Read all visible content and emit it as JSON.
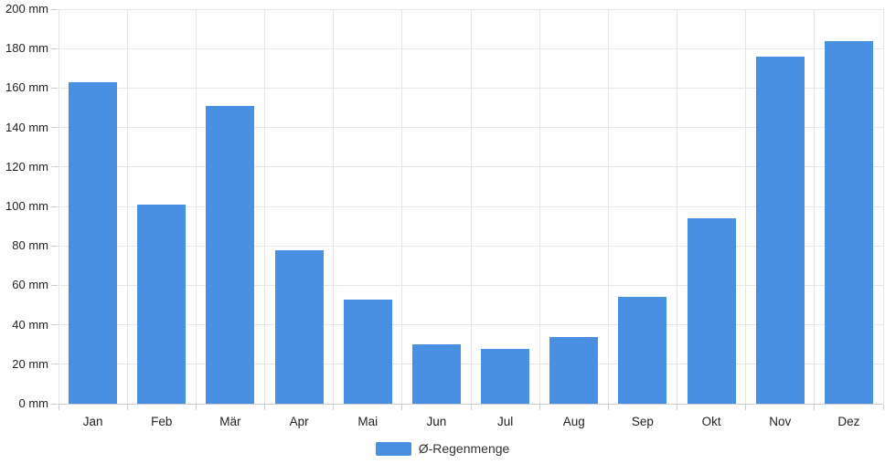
{
  "chart": {
    "colors": {
      "bar": "#4a90e2",
      "grid": "#e6e6e6",
      "axis": "#cccccc",
      "label_text": "#222222"
    }
  },
  "chart_data": {
    "type": "bar",
    "categories": [
      "Jan",
      "Feb",
      "Mär",
      "Apr",
      "Mai",
      "Jun",
      "Jul",
      "Aug",
      "Sep",
      "Okt",
      "Nov",
      "Dez"
    ],
    "values": [
      163,
      101,
      151,
      78,
      53,
      30,
      28,
      34,
      54,
      94,
      176,
      184
    ],
    "series_name": "Ø-Regenmenge",
    "title": "",
    "xlabel": "",
    "ylabel": "",
    "y_tick_suffix": " mm",
    "ylim": [
      0,
      200
    ],
    "y_tick_step": 20,
    "grid": true,
    "legend_position": "bottom-center"
  }
}
